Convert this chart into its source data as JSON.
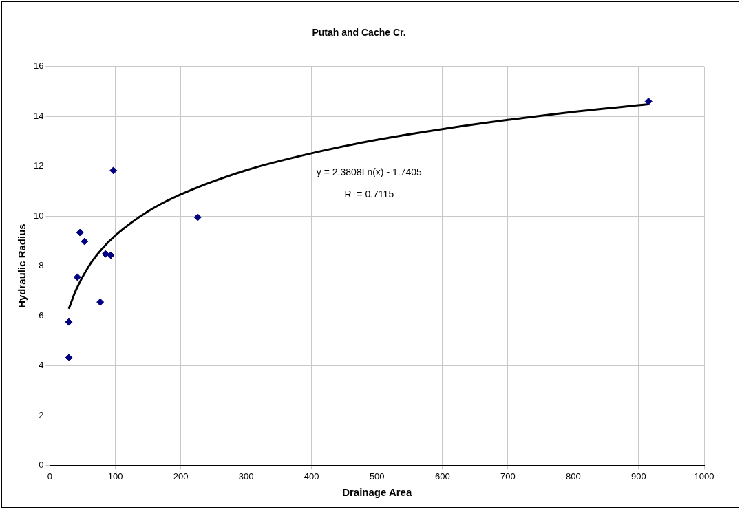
{
  "chart_data": {
    "type": "scatter",
    "title": "Putah and Cache Cr.",
    "xlabel": "Drainage Area",
    "ylabel": "Hydraulic Radius",
    "xlim": [
      0,
      1000
    ],
    "xticks": [
      0,
      100,
      200,
      300,
      400,
      500,
      600,
      700,
      800,
      900,
      1000
    ],
    "ylim": [
      0,
      16
    ],
    "yticks": [
      0,
      2,
      4,
      6,
      8,
      10,
      12,
      14,
      16
    ],
    "grid": true,
    "legend": false,
    "marker": "diamond",
    "annotations": [
      "y = 2.3808Ln(x) - 1.7405",
      "R  = 0.7115"
    ],
    "series": [
      {
        "type": "scatter",
        "color": "#000080",
        "x": [
          29,
          29,
          42,
          46,
          53,
          77,
          85,
          93,
          97,
          226,
          915
        ],
        "values": [
          4.32,
          5.75,
          7.55,
          9.34,
          8.98,
          6.55,
          8.48,
          8.43,
          11.83,
          9.95,
          14.6
        ]
      },
      {
        "type": "line",
        "color": "#000000",
        "marker": "none",
        "line_style": "solid",
        "x": [
          29,
          40,
          60,
          80,
          100,
          150,
          200,
          300,
          400,
          500,
          600,
          700,
          800,
          915
        ],
        "values": [
          6.28,
          7.04,
          8.01,
          8.69,
          9.22,
          10.19,
          10.87,
          11.84,
          12.52,
          13.06,
          13.49,
          13.86,
          14.18,
          14.49
        ]
      }
    ]
  }
}
